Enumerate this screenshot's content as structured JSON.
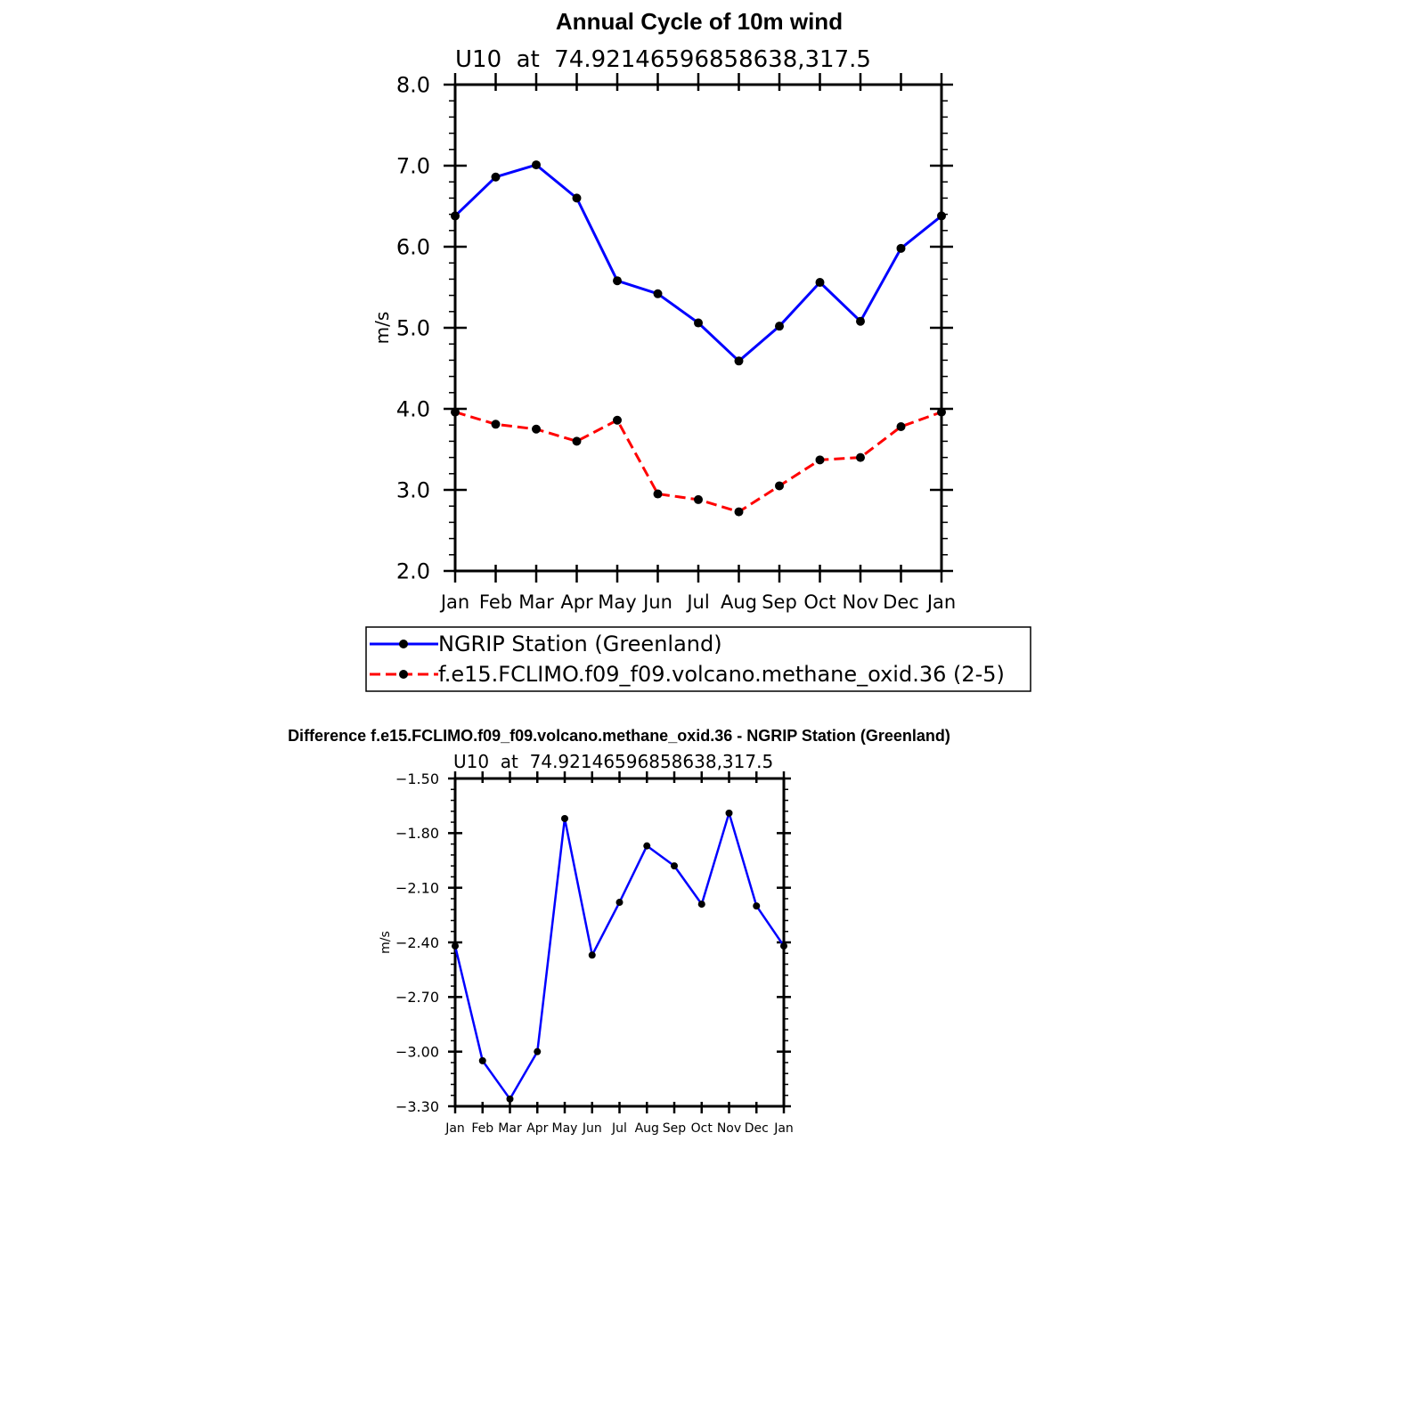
{
  "chart_data": [
    {
      "type": "line",
      "title": "Annual Cycle of 10m wind",
      "subtitle": "U10  at  74.92146596858638,317.5",
      "xlabel": "",
      "ylabel": "m/s",
      "categories": [
        "Jan",
        "Feb",
        "Mar",
        "Apr",
        "May",
        "Jun",
        "Jul",
        "Aug",
        "Sep",
        "Oct",
        "Nov",
        "Dec",
        "Jan"
      ],
      "ylim": [
        2.0,
        8.0
      ],
      "yticks": [
        "2.0",
        "3.0",
        "4.0",
        "5.0",
        "6.0",
        "7.0",
        "8.0"
      ],
      "ytick_values": [
        2.0,
        3.0,
        4.0,
        5.0,
        6.0,
        7.0,
        8.0
      ],
      "series": [
        {
          "name": "NGRIP Station (Greenland)",
          "color": "#0000ff",
          "dash": "solid",
          "values": [
            6.38,
            6.86,
            7.01,
            6.6,
            5.58,
            5.42,
            5.06,
            4.59,
            5.02,
            5.56,
            5.08,
            5.98,
            6.38
          ]
        },
        {
          "name": "f.e15.FCLIMO.f09_f09.volcano.methane_oxid.36 (2-5)",
          "color": "#ff0000",
          "dash": "dashed",
          "values": [
            3.96,
            3.81,
            3.75,
            3.6,
            3.86,
            2.95,
            2.88,
            2.73,
            3.05,
            3.37,
            3.4,
            3.78,
            3.96
          ]
        }
      ],
      "legend_position": "bottom"
    },
    {
      "type": "line",
      "title": "Difference f.e15.FCLIMO.f09_f09.volcano.methane_oxid.36 - NGRIP Station (Greenland)",
      "subtitle": "U10  at  74.92146596858638,317.5",
      "xlabel": "",
      "ylabel": "m/s",
      "categories": [
        "Jan",
        "Feb",
        "Mar",
        "Apr",
        "May",
        "Jun",
        "Jul",
        "Aug",
        "Sep",
        "Oct",
        "Nov",
        "Dec",
        "Jan"
      ],
      "ylim": [
        -3.3,
        -1.5
      ],
      "yticks": [
        "-3.30",
        "-3.00",
        "-2.70",
        "-2.40",
        "-2.10",
        "-1.80",
        "-1.50"
      ],
      "ytick_values": [
        -3.3,
        -3.0,
        -2.7,
        -2.4,
        -2.1,
        -1.8,
        -1.5
      ],
      "series": [
        {
          "name": "Difference",
          "color": "#0000ff",
          "dash": "solid",
          "values": [
            -2.42,
            -3.05,
            -3.26,
            -3.0,
            -1.72,
            -2.47,
            -2.18,
            -1.87,
            -1.98,
            -2.19,
            -1.69,
            -2.2,
            -2.42
          ]
        }
      ]
    }
  ]
}
